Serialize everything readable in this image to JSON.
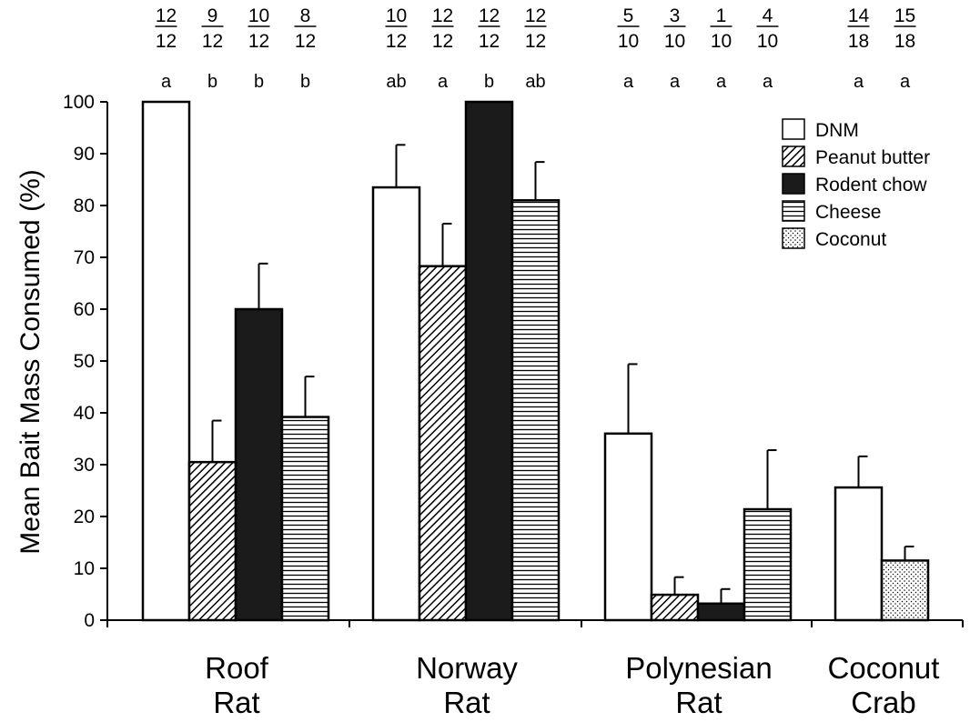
{
  "chart_data": {
    "type": "bar",
    "title": "",
    "xlabel": "",
    "ylabel": "Mean Bait Mass Consumed (%)",
    "ylim": [
      0,
      100
    ],
    "yticks": [
      0,
      10,
      20,
      30,
      40,
      50,
      60,
      70,
      80,
      90,
      100
    ],
    "grid": false,
    "legend_position": "top-right",
    "legend": [
      {
        "name": "DNM",
        "pattern": "white"
      },
      {
        "name": "Peanut butter",
        "pattern": "diagonal-hatch"
      },
      {
        "name": "Rodent chow",
        "pattern": "black"
      },
      {
        "name": "Cheese",
        "pattern": "horizontal-lines"
      },
      {
        "name": "Coconut",
        "pattern": "dots"
      }
    ],
    "groups": [
      {
        "label_lines": [
          "Roof",
          "Rat"
        ],
        "bars": [
          {
            "series": "DNM",
            "value": 100,
            "error": 0,
            "letter": "a",
            "ratio_num": "12",
            "ratio_den": "12"
          },
          {
            "series": "Peanut butter",
            "value": 30.5,
            "error": 8,
            "letter": "b",
            "ratio_num": "9",
            "ratio_den": "12"
          },
          {
            "series": "Rodent chow",
            "value": 60,
            "error": 8.8,
            "letter": "b",
            "ratio_num": "10",
            "ratio_den": "12"
          },
          {
            "series": "Cheese",
            "value": 39.2,
            "error": 7.8,
            "letter": "b",
            "ratio_num": "8",
            "ratio_den": "12"
          }
        ]
      },
      {
        "label_lines": [
          "Norway",
          "Rat"
        ],
        "bars": [
          {
            "series": "DNM",
            "value": 83.5,
            "error": 8.2,
            "letter": "ab",
            "ratio_num": "10",
            "ratio_den": "12"
          },
          {
            "series": "Peanut butter",
            "value": 68.3,
            "error": 8.2,
            "letter": "a",
            "ratio_num": "12",
            "ratio_den": "12"
          },
          {
            "series": "Rodent chow",
            "value": 100,
            "error": 0,
            "letter": "b",
            "ratio_num": "12",
            "ratio_den": "12"
          },
          {
            "series": "Cheese",
            "value": 81,
            "error": 7.4,
            "letter": "ab",
            "ratio_num": "12",
            "ratio_den": "12"
          }
        ]
      },
      {
        "label_lines": [
          "Polynesian",
          "Rat"
        ],
        "bars": [
          {
            "series": "DNM",
            "value": 36,
            "error": 13.4,
            "letter": "a",
            "ratio_num": "5",
            "ratio_den": "10"
          },
          {
            "series": "Peanut butter",
            "value": 4.9,
            "error": 3.4,
            "letter": "a",
            "ratio_num": "3",
            "ratio_den": "10"
          },
          {
            "series": "Rodent chow",
            "value": 3.2,
            "error": 2.8,
            "letter": "a",
            "ratio_num": "1",
            "ratio_den": "10"
          },
          {
            "series": "Cheese",
            "value": 21.4,
            "error": 11.4,
            "letter": "a",
            "ratio_num": "4",
            "ratio_den": "10"
          }
        ]
      },
      {
        "label_lines": [
          "Coconut",
          "Crab"
        ],
        "bars": [
          {
            "series": "DNM",
            "value": 25.6,
            "error": 6,
            "letter": "a",
            "ratio_num": "14",
            "ratio_den": "18"
          },
          {
            "series": "Coconut",
            "value": 11.5,
            "error": 2.7,
            "letter": "a",
            "ratio_num": "15",
            "ratio_den": "18"
          }
        ]
      }
    ]
  }
}
